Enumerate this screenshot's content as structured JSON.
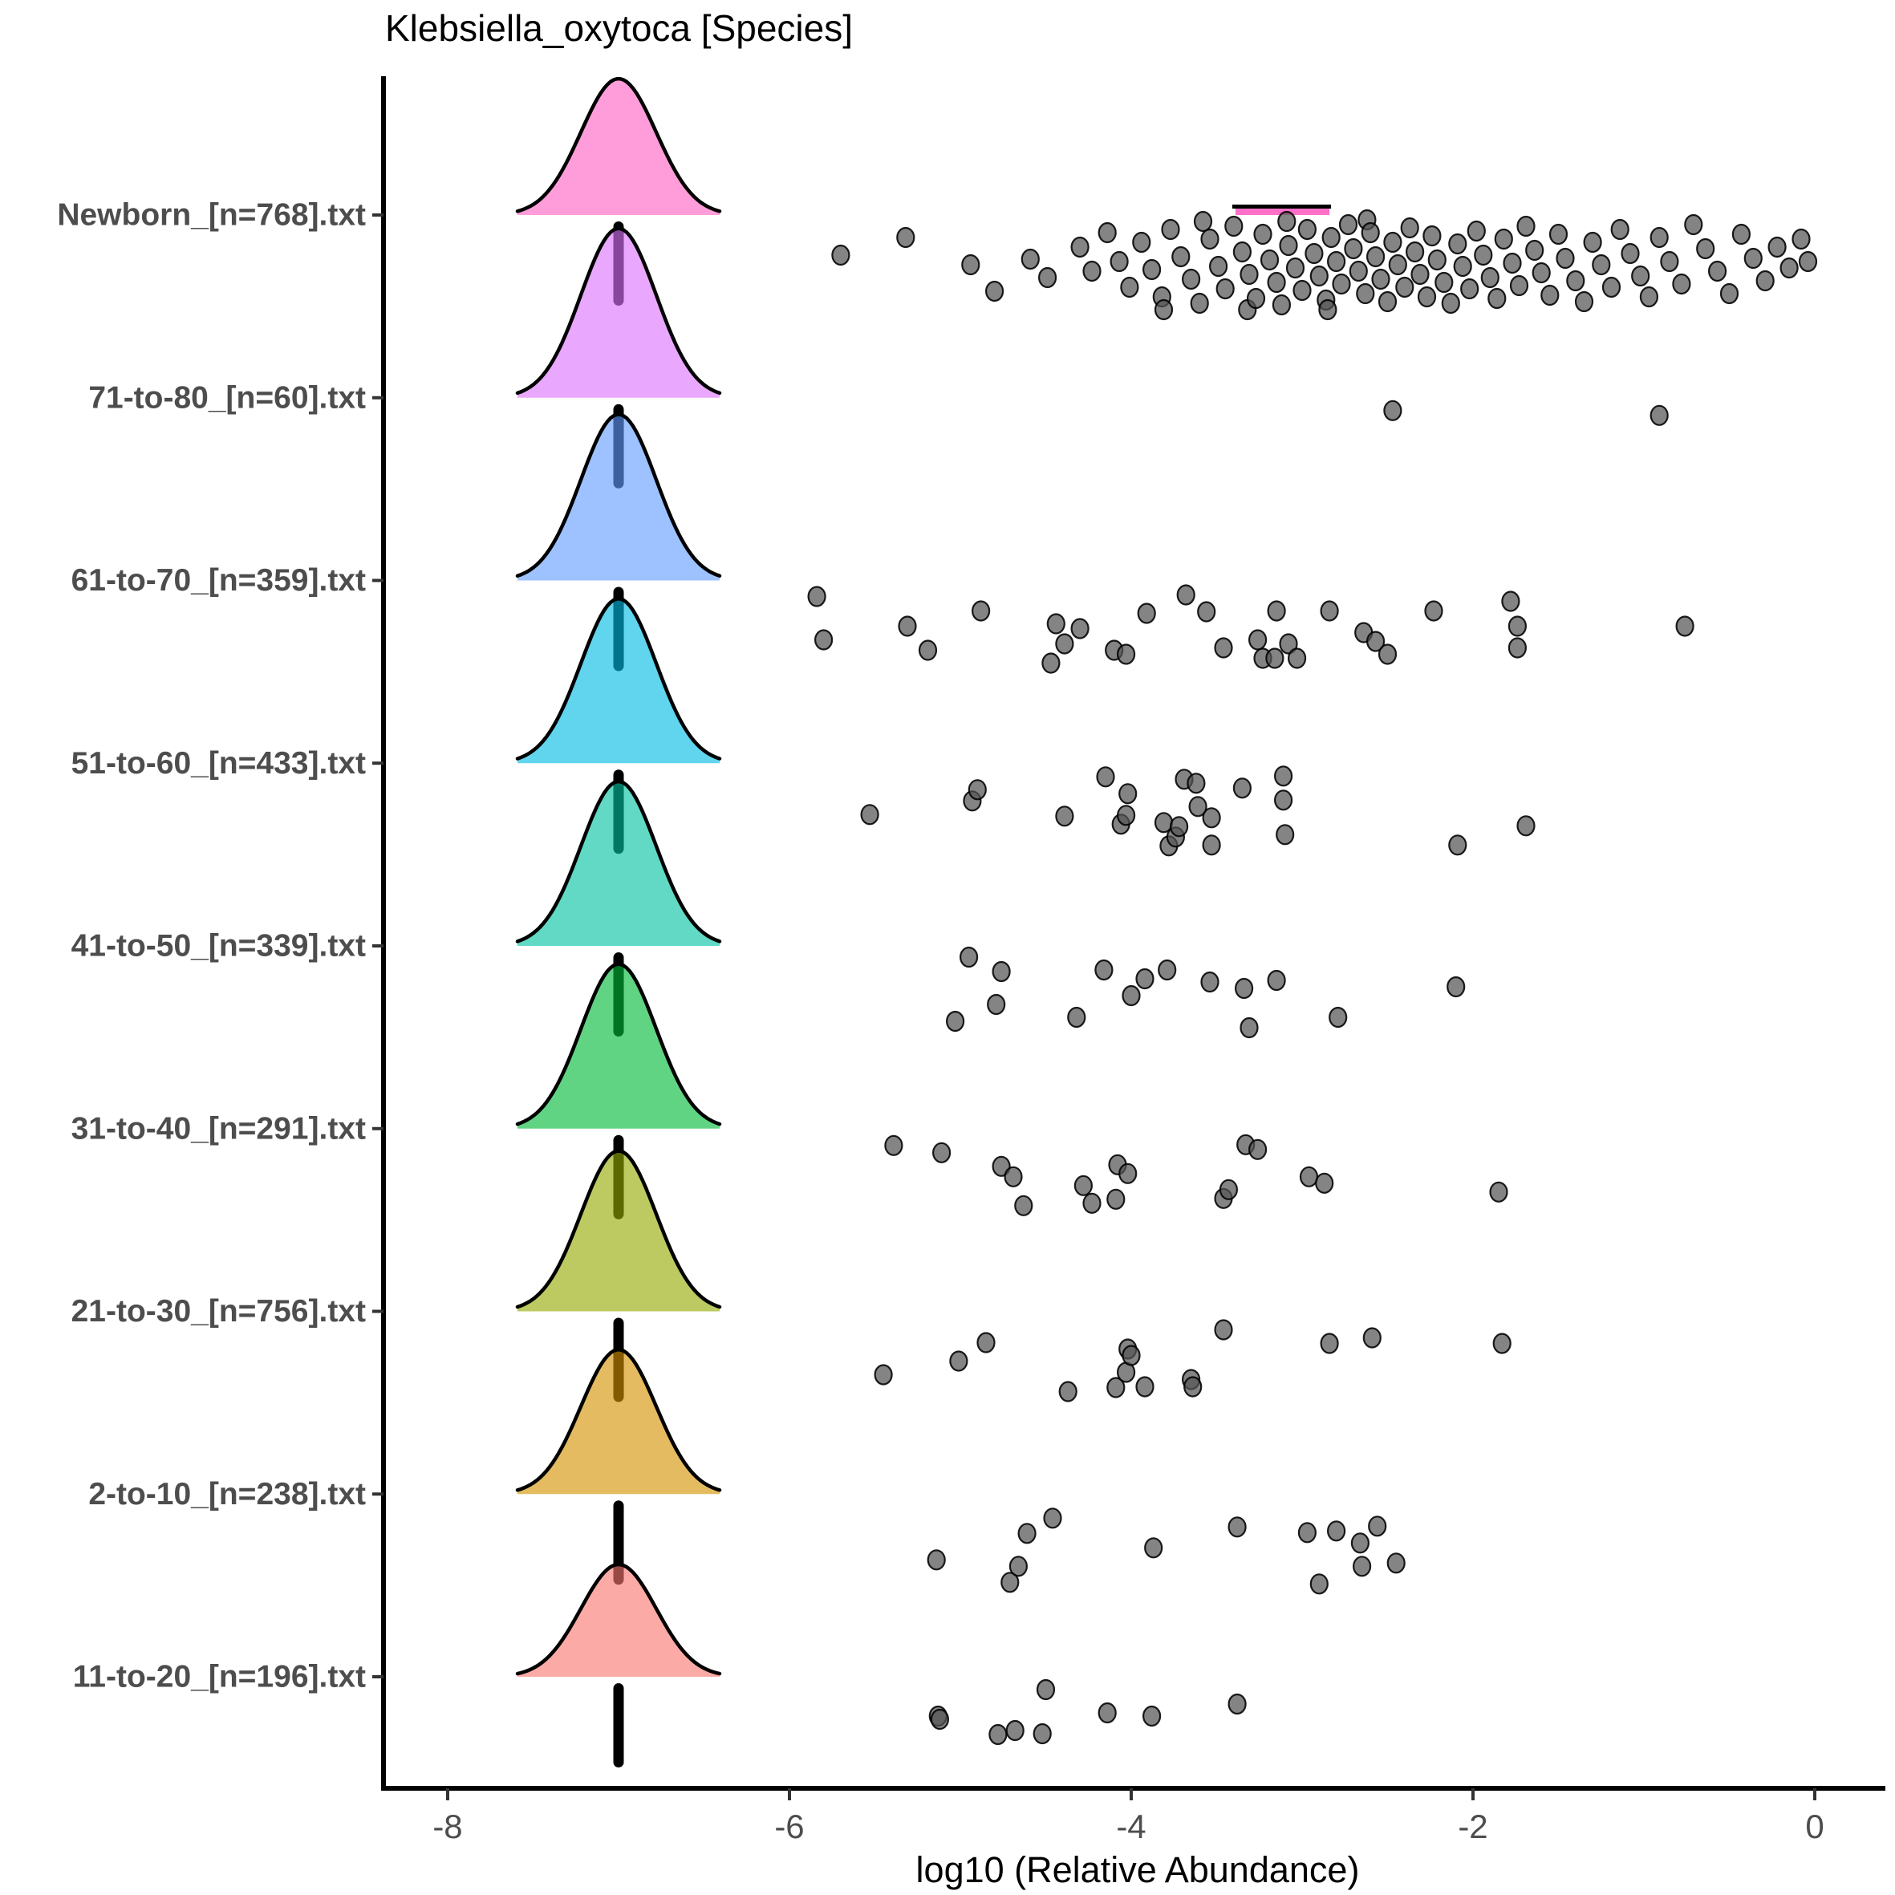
{
  "chart_data": {
    "type": "area",
    "subtype": "ridgeline-raincloud",
    "title": "Klebsiella_oxytoca [Species]",
    "xlabel": "log10 (Relative Abundance)",
    "ylabel": "",
    "xlim": [
      -8.65,
      0.47
    ],
    "x_ticks": [
      -8,
      -6,
      -4,
      -2,
      0
    ],
    "grid": false,
    "legend": "none",
    "density_curves": {
      "center": -7.0,
      "note": "each group shows a near-identical gaussian density bump centered at log10 = -7 with a black median bar hanging below the baseline",
      "newborn_secondary_bump": {
        "x_from": -3.39,
        "x_to": -2.84
      }
    },
    "point_style": {
      "fill": "#555555",
      "stroke": "#000000",
      "alpha": 0.72
    },
    "axis_color": "#000000",
    "tick_label_color": "#4D4D4D",
    "rows": [
      {
        "label": "Newborn_[n=768].txt",
        "n": 768,
        "fill_rgb": [
          255,
          97,
          195
        ],
        "curve_height": 170,
        "points": [
          [
            -5.7,
            50
          ],
          [
            -5.32,
            28
          ],
          [
            -4.94,
            62
          ],
          [
            -4.8,
            95
          ],
          [
            -4.59,
            55
          ],
          [
            -4.49,
            78
          ],
          [
            -4.3,
            40
          ],
          [
            -4.23,
            70
          ],
          [
            -4.14,
            22
          ],
          [
            -4.07,
            58
          ],
          [
            -4.01,
            90
          ],
          [
            -3.94,
            34
          ],
          [
            -3.88,
            68
          ],
          [
            -3.82,
            102
          ],
          [
            -3.81,
            118
          ],
          [
            -3.77,
            18
          ],
          [
            -3.71,
            52
          ],
          [
            -3.65,
            80
          ],
          [
            -3.6,
            110
          ],
          [
            -3.58,
            8
          ],
          [
            -3.54,
            30
          ],
          [
            -3.49,
            64
          ],
          [
            -3.45,
            92
          ],
          [
            -3.4,
            14
          ],
          [
            -3.35,
            46
          ],
          [
            -3.32,
            118
          ],
          [
            -3.31,
            74
          ],
          [
            -3.27,
            104
          ],
          [
            -3.23,
            24
          ],
          [
            -3.19,
            56
          ],
          [
            -3.15,
            84
          ],
          [
            -3.12,
            112
          ],
          [
            -3.09,
            8
          ],
          [
            -3.08,
            38
          ],
          [
            -3.04,
            66
          ],
          [
            -3.0,
            94
          ],
          [
            -2.97,
            18
          ],
          [
            -2.93,
            48
          ],
          [
            -2.9,
            76
          ],
          [
            -2.86,
            106
          ],
          [
            -2.85,
            118
          ],
          [
            -2.83,
            28
          ],
          [
            -2.8,
            58
          ],
          [
            -2.77,
            86
          ],
          [
            -2.73,
            12
          ],
          [
            -2.7,
            42
          ],
          [
            -2.67,
            70
          ],
          [
            -2.63,
            98
          ],
          [
            -2.62,
            6
          ],
          [
            -2.6,
            22
          ],
          [
            -2.57,
            52
          ],
          [
            -2.54,
            80
          ],
          [
            -2.5,
            108
          ],
          [
            -2.47,
            34
          ],
          [
            -2.44,
            62
          ],
          [
            -2.4,
            90
          ],
          [
            -2.37,
            16
          ],
          [
            -2.34,
            46
          ],
          [
            -2.31,
            74
          ],
          [
            -2.27,
            102
          ],
          [
            -2.24,
            26
          ],
          [
            -2.21,
            56
          ],
          [
            -2.17,
            84
          ],
          [
            -2.13,
            110
          ],
          [
            -2.09,
            36
          ],
          [
            -2.06,
            64
          ],
          [
            -2.02,
            92
          ],
          [
            -1.98,
            20
          ],
          [
            -1.94,
            50
          ],
          [
            -1.9,
            78
          ],
          [
            -1.86,
            104
          ],
          [
            -1.82,
            30
          ],
          [
            -1.77,
            60
          ],
          [
            -1.73,
            88
          ],
          [
            -1.69,
            14
          ],
          [
            -1.64,
            44
          ],
          [
            -1.6,
            72
          ],
          [
            -1.55,
            100
          ],
          [
            -1.5,
            24
          ],
          [
            -1.46,
            54
          ],
          [
            -1.4,
            82
          ],
          [
            -1.35,
            108
          ],
          [
            -1.3,
            34
          ],
          [
            -1.25,
            62
          ],
          [
            -1.19,
            90
          ],
          [
            -1.14,
            18
          ],
          [
            -1.08,
            48
          ],
          [
            -1.02,
            76
          ],
          [
            -0.97,
            102
          ],
          [
            -0.91,
            28
          ],
          [
            -0.85,
            58
          ],
          [
            -0.78,
            86
          ],
          [
            -0.71,
            12
          ],
          [
            -0.64,
            42
          ],
          [
            -0.57,
            70
          ],
          [
            -0.5,
            98
          ],
          [
            -0.43,
            24
          ],
          [
            -0.36,
            54
          ],
          [
            -0.29,
            82
          ],
          [
            -0.22,
            40
          ],
          [
            -0.15,
            66
          ],
          [
            -0.08,
            30
          ],
          [
            -0.04,
            58
          ]
        ]
      },
      {
        "label": "71-to-80_[n=60].txt",
        "n": 60,
        "fill_rgb": [
          219,
          114,
          251
        ],
        "curve_height": 211,
        "points": [
          [
            -2.47,
            16
          ],
          [
            -0.91,
            22
          ]
        ]
      },
      {
        "label": "61-to-70_[n=359].txt",
        "n": 359,
        "fill_rgb": [
          97,
          156,
          255
        ],
        "curve_height": 207,
        "points": [
          [
            -5.84,
            20
          ],
          [
            -5.8,
            74
          ],
          [
            -5.31,
            57
          ],
          [
            -5.19,
            87
          ],
          [
            -4.88,
            38
          ],
          [
            -4.47,
            103
          ],
          [
            -4.44,
            54
          ],
          [
            -4.39,
            79
          ],
          [
            -4.3,
            60
          ],
          [
            -4.1,
            87
          ],
          [
            -4.03,
            92
          ],
          [
            -3.91,
            41
          ],
          [
            -3.68,
            18
          ],
          [
            -3.56,
            39
          ],
          [
            -3.46,
            84
          ],
          [
            -3.26,
            74
          ],
          [
            -3.23,
            97
          ],
          [
            -3.16,
            97
          ],
          [
            -3.15,
            38
          ],
          [
            -3.08,
            79
          ],
          [
            -3.03,
            97
          ],
          [
            -2.84,
            38
          ],
          [
            -2.64,
            65
          ],
          [
            -2.57,
            76
          ],
          [
            -2.5,
            92
          ],
          [
            -2.23,
            38
          ],
          [
            -1.78,
            26
          ],
          [
            -1.74,
            57
          ],
          [
            -1.74,
            84
          ],
          [
            -0.76,
            57
          ]
        ]
      },
      {
        "label": "51-to-60_[n=433].txt",
        "n": 433,
        "fill_rgb": [
          0,
          185,
          227
        ],
        "curve_height": 205,
        "points": [
          [
            -5.53,
            64
          ],
          [
            -4.93,
            47
          ],
          [
            -4.9,
            33
          ],
          [
            -4.39,
            66
          ],
          [
            -4.15,
            17
          ],
          [
            -4.06,
            76
          ],
          [
            -4.03,
            65
          ],
          [
            -4.02,
            38
          ],
          [
            -3.81,
            74
          ],
          [
            -3.78,
            103
          ],
          [
            -3.74,
            92
          ],
          [
            -3.72,
            79
          ],
          [
            -3.69,
            20
          ],
          [
            -3.62,
            25
          ],
          [
            -3.61,
            54
          ],
          [
            -3.53,
            68
          ],
          [
            -3.53,
            102
          ],
          [
            -3.35,
            31
          ],
          [
            -3.11,
            16
          ],
          [
            -3.11,
            46
          ],
          [
            -3.1,
            89
          ],
          [
            -2.09,
            102
          ],
          [
            -1.69,
            78
          ]
        ]
      },
      {
        "label": "41-to-50_[n=339].txt",
        "n": 339,
        "fill_rgb": [
          0,
          193,
          159
        ],
        "curve_height": 205,
        "points": [
          [
            -5.03,
            94
          ],
          [
            -4.95,
            14
          ],
          [
            -4.79,
            73
          ],
          [
            -4.76,
            32
          ],
          [
            -4.32,
            89
          ],
          [
            -4.16,
            30
          ],
          [
            -4.0,
            62
          ],
          [
            -3.92,
            41
          ],
          [
            -3.79,
            30
          ],
          [
            -3.54,
            45
          ],
          [
            -3.34,
            53
          ],
          [
            -3.31,
            102
          ],
          [
            -3.15,
            43
          ],
          [
            -2.79,
            89
          ],
          [
            -2.1,
            51
          ]
        ]
      },
      {
        "label": "31-to-40_[n=291].txt",
        "n": 291,
        "fill_rgb": [
          0,
          186,
          56
        ],
        "curve_height": 205,
        "points": [
          [
            -5.39,
            21
          ],
          [
            -5.11,
            30
          ],
          [
            -4.76,
            47
          ],
          [
            -4.69,
            60
          ],
          [
            -4.63,
            96
          ],
          [
            -4.28,
            71
          ],
          [
            -4.23,
            93
          ],
          [
            -4.09,
            88
          ],
          [
            -4.08,
            45
          ],
          [
            -4.02,
            56
          ],
          [
            -3.46,
            87
          ],
          [
            -3.43,
            76
          ],
          [
            -3.33,
            20
          ],
          [
            -3.26,
            26
          ],
          [
            -2.96,
            60
          ],
          [
            -2.87,
            68
          ],
          [
            -1.85,
            79
          ]
        ]
      },
      {
        "label": "21-to-30_[n=756].txt",
        "n": 756,
        "fill_rgb": [
          147,
          170,
          0
        ],
        "curve_height": 200,
        "points": [
          [
            -5.45,
            79
          ],
          [
            -5.01,
            62
          ],
          [
            -4.85,
            39
          ],
          [
            -4.37,
            100
          ],
          [
            -4.09,
            95
          ],
          [
            -4.03,
            76
          ],
          [
            -4.02,
            47
          ],
          [
            -4.0,
            55
          ],
          [
            -3.92,
            94
          ],
          [
            -3.65,
            85
          ],
          [
            -3.64,
            94
          ],
          [
            -3.46,
            23
          ],
          [
            -2.84,
            40
          ],
          [
            -2.59,
            33
          ],
          [
            -1.83,
            40
          ]
        ]
      },
      {
        "label": "2-to-10_[n=238].txt",
        "n": 238,
        "fill_rgb": [
          211,
          146,
          0
        ],
        "curve_height": 180,
        "points": [
          [
            -5.14,
            82
          ],
          [
            -4.71,
            110
          ],
          [
            -4.66,
            90
          ],
          [
            -4.61,
            49
          ],
          [
            -4.46,
            30
          ],
          [
            -3.87,
            67
          ],
          [
            -3.38,
            41
          ],
          [
            -2.97,
            48
          ],
          [
            -2.9,
            112
          ],
          [
            -2.8,
            46
          ],
          [
            -2.66,
            61
          ],
          [
            -2.65,
            90
          ],
          [
            -2.56,
            40
          ],
          [
            -2.45,
            86
          ]
        ]
      },
      {
        "label": "11-to-20_[n=196].txt",
        "n": 196,
        "fill_rgb": [
          248,
          118,
          109
        ],
        "curve_height": 140,
        "points": [
          [
            -5.13,
            49
          ],
          [
            -5.12,
            53
          ],
          [
            -4.78,
            72
          ],
          [
            -4.68,
            67
          ],
          [
            -4.52,
            71
          ],
          [
            -4.5,
            16
          ],
          [
            -4.14,
            45
          ],
          [
            -3.88,
            49
          ],
          [
            -3.38,
            34
          ]
        ]
      }
    ]
  }
}
